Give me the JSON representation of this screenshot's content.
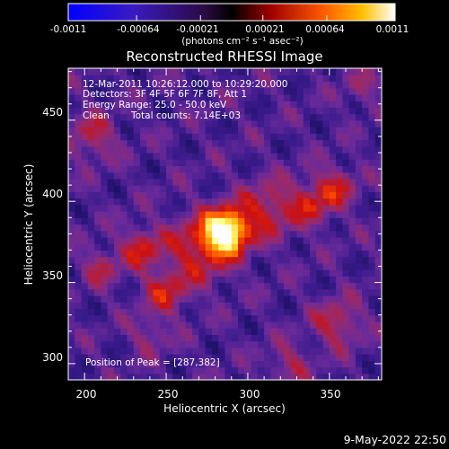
{
  "colorbar": {
    "tick_labels": [
      "-0.0011",
      "-0.00064",
      "-0.00021",
      "0.00021",
      "0.00064",
      "0.0011"
    ],
    "tick_values": [
      -0.0011,
      -0.00064,
      -0.00021,
      0.00021,
      0.00064,
      0.0011
    ],
    "range": [
      -0.0011,
      0.0011
    ],
    "label": "(photons cm⁻² s⁻¹ asec⁻²)"
  },
  "chart_data": {
    "type": "heatmap",
    "title": "Reconstructed RHESSI Image",
    "xlabel": "Heliocentric X (arcsec)",
    "ylabel": "Heliocentric Y (arcsec)",
    "xlim": [
      190,
      382
    ],
    "ylim": [
      290,
      482
    ],
    "x_ticks": [
      200,
      250,
      300,
      350
    ],
    "y_ticks": [
      300,
      350,
      400,
      450
    ],
    "x_tick_labels": [
      "200",
      "250",
      "300",
      "350"
    ],
    "y_tick_labels": [
      "300",
      "350",
      "400",
      "450"
    ],
    "peak": [
      287,
      382
    ],
    "colormap": [
      "#0000ff",
      "#1d1064",
      "#3a1a8c",
      "#6a2a9a",
      "#9a2a6a",
      "#cc1010",
      "#ff4a00",
      "#ffb000",
      "#ffff80",
      "#ffffff"
    ]
  },
  "annotations": {
    "time": "12-Mar-2011 10:26:12.000 to 10:29:20.000",
    "detectors": "Detectors: 3F 4F 5F 6F 7F 8F, Att 1",
    "energy": "Energy Range: 25.0 - 50.0 keV",
    "method": "Clean",
    "counts": "Total counts: 7.14E+03",
    "peak_text": "Position of Peak = [287,382]"
  },
  "footer": {
    "date": "9-May-2022 22:50"
  }
}
